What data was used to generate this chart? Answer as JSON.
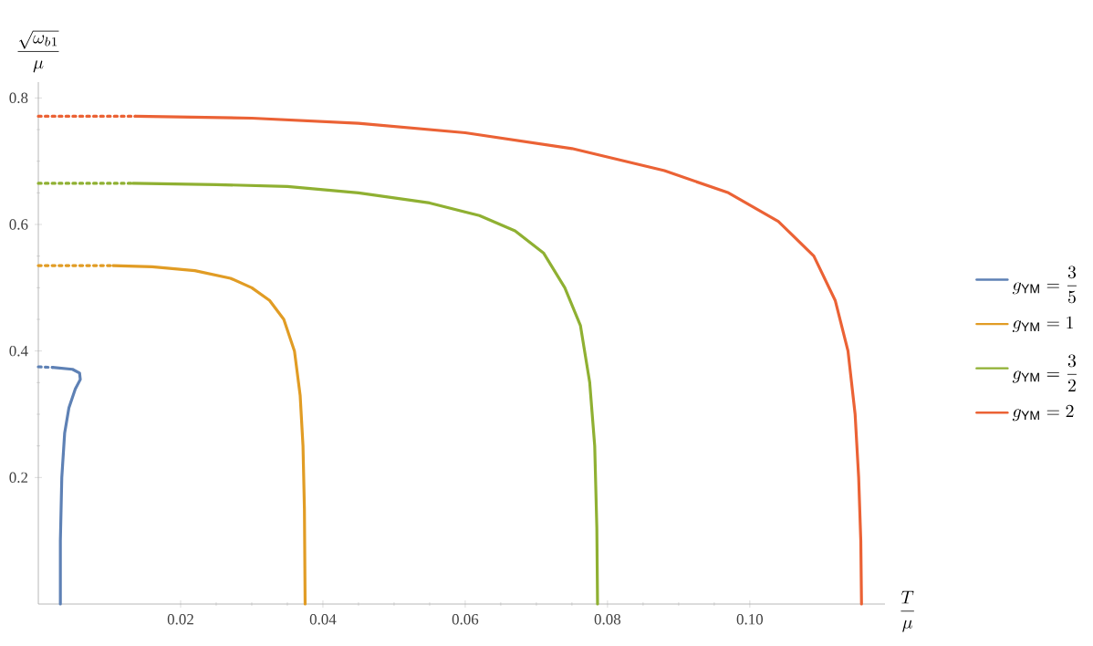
{
  "chart_data": {
    "type": "line",
    "xlabel": "\\frac{T}{\\mu}",
    "ylabel": "\\frac{\\sqrt{\\omega_{b1}}}{\\mu}",
    "xlim": [
      0,
      0.119
    ],
    "ylim": [
      0,
      0.825
    ],
    "xticks": [
      0.02,
      0.04,
      0.06,
      0.08,
      {
        "value": 0.1,
        "label": "0.10"
      }
    ],
    "yticks": [
      0.2,
      0.4,
      0.6,
      0.8
    ],
    "grid": false,
    "legend": "right",
    "series": [
      {
        "name": "g_{\\mathrm{YM}}=\\frac{3}{5}",
        "color": "#5e81b5",
        "line_style": "solid",
        "x": [
          0.0031,
          0.0031,
          0.0033,
          0.0037,
          0.0043,
          0.0052,
          0.0059,
          0.0058,
          0.0048,
          0.002
        ],
        "values": [
          0,
          0.1,
          0.2,
          0.27,
          0.31,
          0.34,
          0.355,
          0.365,
          0.371,
          0.374
        ]
      },
      {
        "color": "#5e81b5",
        "line_style": "dotted",
        "x": [
          0,
          0.002
        ],
        "values": [
          0.375,
          0.374
        ]
      },
      {
        "name": "g_{\\mathrm{YM}}=1",
        "color": "#e19c24",
        "line_style": "solid",
        "x": [
          0.0105,
          0.016,
          0.022,
          0.027,
          0.03,
          0.0325,
          0.0345,
          0.036,
          0.0368,
          0.0372,
          0.0374,
          0.0375
        ],
        "values": [
          0.535,
          0.533,
          0.527,
          0.515,
          0.5,
          0.48,
          0.45,
          0.4,
          0.33,
          0.25,
          0.15,
          0
        ]
      },
      {
        "color": "#e19c24",
        "line_style": "dotted",
        "x": [
          0,
          0.0105
        ],
        "values": [
          0.535,
          0.535
        ]
      },
      {
        "name": "g_{\\mathrm{YM}}=\\frac{3}{2}",
        "color": "#8fb032",
        "line_style": "solid",
        "x": [
          0.0133,
          0.025,
          0.035,
          0.045,
          0.055,
          0.062,
          0.067,
          0.071,
          0.074,
          0.0762,
          0.0775,
          0.0782,
          0.0785,
          0.0786
        ],
        "values": [
          0.665,
          0.663,
          0.66,
          0.65,
          0.634,
          0.614,
          0.59,
          0.555,
          0.5,
          0.44,
          0.35,
          0.25,
          0.12,
          0
        ]
      },
      {
        "color": "#8fb032",
        "line_style": "dotted",
        "x": [
          0,
          0.0133
        ],
        "values": [
          0.665,
          0.665
        ]
      },
      {
        "name": "g_{\\mathrm{YM}}=2",
        "color": "#eb6235",
        "line_style": "solid",
        "x": [
          0.0136,
          0.03,
          0.045,
          0.06,
          0.075,
          0.088,
          0.097,
          0.104,
          0.109,
          0.112,
          0.1138,
          0.1148,
          0.1153,
          0.1156,
          0.1157
        ],
        "values": [
          0.771,
          0.768,
          0.76,
          0.745,
          0.72,
          0.685,
          0.65,
          0.605,
          0.55,
          0.48,
          0.4,
          0.3,
          0.2,
          0.1,
          0
        ]
      },
      {
        "color": "#eb6235",
        "line_style": "dotted",
        "x": [
          0,
          0.0136
        ],
        "values": [
          0.771,
          0.771
        ]
      }
    ]
  }
}
